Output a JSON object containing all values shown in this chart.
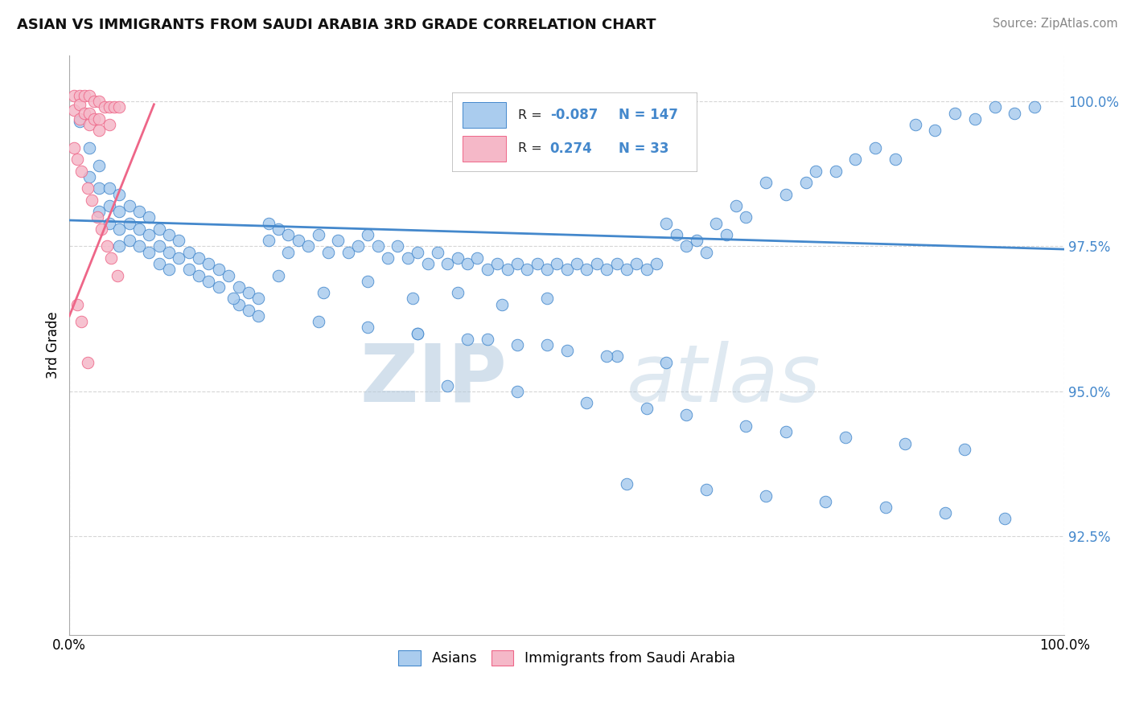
{
  "title": "ASIAN VS IMMIGRANTS FROM SAUDI ARABIA 3RD GRADE CORRELATION CHART",
  "source_text": "Source: ZipAtlas.com",
  "ylabel": "3rd Grade",
  "watermark_zip": "ZIP",
  "watermark_atlas": "atlas",
  "xlim": [
    0.0,
    1.0
  ],
  "ylim": [
    0.908,
    1.008
  ],
  "yticks": [
    0.925,
    0.95,
    0.975,
    1.0
  ],
  "ytick_labels": [
    "92.5%",
    "95.0%",
    "97.5%",
    "100.0%"
  ],
  "xtick_positions": [
    0.0,
    1.0
  ],
  "xtick_labels": [
    "0.0%",
    "100.0%"
  ],
  "legend_R_blue": "-0.087",
  "legend_N_blue": "147",
  "legend_R_pink": "0.274",
  "legend_N_pink": "33",
  "blue_color": "#aaccee",
  "pink_color": "#f5b8c8",
  "trend_blue_color": "#4488cc",
  "trend_pink_color": "#ee6688",
  "trend_blue_start_y": 0.9795,
  "trend_blue_end_y": 0.9745,
  "trend_pink_start_x": 0.0,
  "trend_pink_start_y": 0.963,
  "trend_pink_end_x": 0.085,
  "trend_pink_end_y": 0.9995,
  "blue_scatter_x": [
    0.01,
    0.02,
    0.02,
    0.03,
    0.03,
    0.03,
    0.04,
    0.04,
    0.04,
    0.05,
    0.05,
    0.05,
    0.05,
    0.06,
    0.06,
    0.06,
    0.07,
    0.07,
    0.07,
    0.08,
    0.08,
    0.08,
    0.09,
    0.09,
    0.09,
    0.1,
    0.1,
    0.1,
    0.11,
    0.11,
    0.12,
    0.12,
    0.13,
    0.13,
    0.14,
    0.14,
    0.15,
    0.15,
    0.16,
    0.17,
    0.17,
    0.18,
    0.18,
    0.19,
    0.19,
    0.2,
    0.2,
    0.21,
    0.22,
    0.22,
    0.23,
    0.24,
    0.25,
    0.26,
    0.27,
    0.28,
    0.29,
    0.3,
    0.31,
    0.32,
    0.33,
    0.34,
    0.35,
    0.36,
    0.37,
    0.38,
    0.39,
    0.4,
    0.41,
    0.42,
    0.43,
    0.44,
    0.45,
    0.46,
    0.47,
    0.48,
    0.49,
    0.5,
    0.51,
    0.52,
    0.53,
    0.54,
    0.55,
    0.56,
    0.57,
    0.58,
    0.59,
    0.6,
    0.61,
    0.62,
    0.63,
    0.64,
    0.65,
    0.66,
    0.67,
    0.68,
    0.7,
    0.72,
    0.74,
    0.75,
    0.77,
    0.79,
    0.81,
    0.83,
    0.85,
    0.87,
    0.89,
    0.91,
    0.93,
    0.95,
    0.97,
    0.165,
    0.21,
    0.255,
    0.3,
    0.345,
    0.39,
    0.435,
    0.48,
    0.25,
    0.3,
    0.35,
    0.4,
    0.45,
    0.5,
    0.55,
    0.6,
    0.38,
    0.45,
    0.52,
    0.58,
    0.62,
    0.68,
    0.72,
    0.78,
    0.84,
    0.9,
    0.56,
    0.64,
    0.7,
    0.76,
    0.82,
    0.88,
    0.94,
    0.35,
    0.42,
    0.48,
    0.54
  ],
  "blue_scatter_y": [
    0.9965,
    0.992,
    0.987,
    0.989,
    0.985,
    0.981,
    0.985,
    0.982,
    0.979,
    0.984,
    0.981,
    0.978,
    0.975,
    0.982,
    0.979,
    0.976,
    0.981,
    0.978,
    0.975,
    0.98,
    0.977,
    0.974,
    0.978,
    0.975,
    0.972,
    0.977,
    0.974,
    0.971,
    0.976,
    0.973,
    0.974,
    0.971,
    0.973,
    0.97,
    0.972,
    0.969,
    0.971,
    0.968,
    0.97,
    0.968,
    0.965,
    0.967,
    0.964,
    0.966,
    0.963,
    0.979,
    0.976,
    0.978,
    0.977,
    0.974,
    0.976,
    0.975,
    0.977,
    0.974,
    0.976,
    0.974,
    0.975,
    0.977,
    0.975,
    0.973,
    0.975,
    0.973,
    0.974,
    0.972,
    0.974,
    0.972,
    0.973,
    0.972,
    0.973,
    0.971,
    0.972,
    0.971,
    0.972,
    0.971,
    0.972,
    0.971,
    0.972,
    0.971,
    0.972,
    0.971,
    0.972,
    0.971,
    0.972,
    0.971,
    0.972,
    0.971,
    0.972,
    0.979,
    0.977,
    0.975,
    0.976,
    0.974,
    0.979,
    0.977,
    0.982,
    0.98,
    0.986,
    0.984,
    0.986,
    0.988,
    0.988,
    0.99,
    0.992,
    0.99,
    0.996,
    0.995,
    0.998,
    0.997,
    0.999,
    0.998,
    0.999,
    0.966,
    0.97,
    0.967,
    0.969,
    0.966,
    0.967,
    0.965,
    0.966,
    0.962,
    0.961,
    0.96,
    0.959,
    0.958,
    0.957,
    0.956,
    0.955,
    0.951,
    0.95,
    0.948,
    0.947,
    0.946,
    0.944,
    0.943,
    0.942,
    0.941,
    0.94,
    0.934,
    0.933,
    0.932,
    0.931,
    0.93,
    0.929,
    0.928,
    0.96,
    0.959,
    0.958,
    0.956
  ],
  "pink_scatter_x": [
    0.005,
    0.005,
    0.01,
    0.01,
    0.01,
    0.015,
    0.015,
    0.02,
    0.02,
    0.02,
    0.025,
    0.025,
    0.03,
    0.03,
    0.03,
    0.035,
    0.04,
    0.04,
    0.045,
    0.05,
    0.005,
    0.008,
    0.012,
    0.018,
    0.022,
    0.028,
    0.032,
    0.038,
    0.042,
    0.048,
    0.008,
    0.012,
    0.018
  ],
  "pink_scatter_y": [
    1.001,
    0.9985,
    1.001,
    0.9995,
    0.997,
    1.001,
    0.998,
    1.001,
    0.998,
    0.996,
    1.0,
    0.997,
    1.0,
    0.997,
    0.995,
    0.999,
    0.999,
    0.996,
    0.999,
    0.999,
    0.992,
    0.99,
    0.988,
    0.985,
    0.983,
    0.98,
    0.978,
    0.975,
    0.973,
    0.97,
    0.965,
    0.962,
    0.955
  ]
}
